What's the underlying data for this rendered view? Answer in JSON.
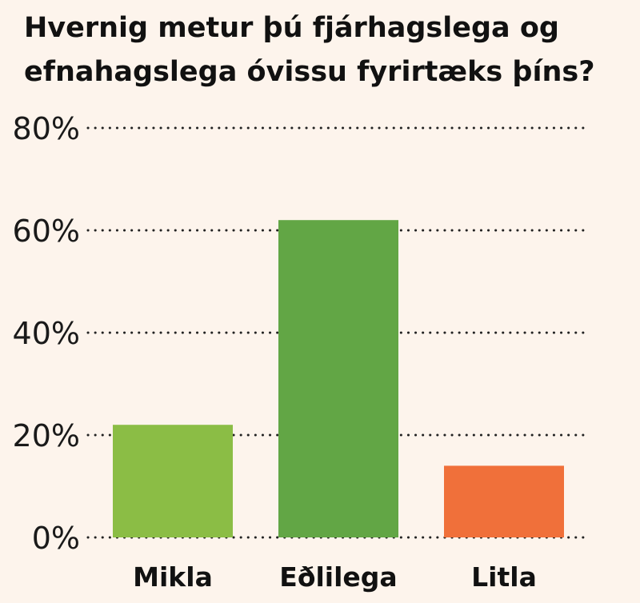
{
  "chart_data": {
    "type": "bar",
    "title_lines": [
      "Hvernig metur þú fjárhagslega og",
      "efnahagslega óvissu fyrirtæks þíns?"
    ],
    "categories": [
      "Mikla",
      "Eðlilega",
      "Litla"
    ],
    "values": [
      22,
      62,
      14
    ],
    "colors": [
      "#8bbd45",
      "#62a645",
      "#f0703a"
    ],
    "y_ticks": [
      "0%",
      "20%",
      "40%",
      "60%",
      "80%"
    ],
    "ylim": [
      0,
      80
    ],
    "grid": true,
    "grid_style": "dotted",
    "legend": "none"
  }
}
